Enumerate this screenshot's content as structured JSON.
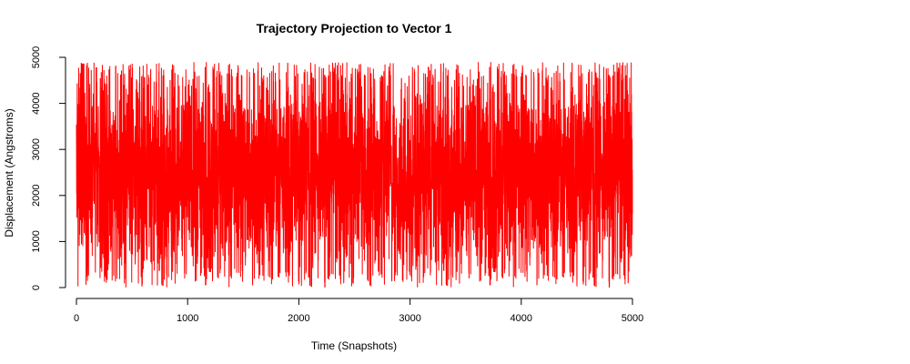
{
  "chart_data": {
    "type": "line",
    "title": "Trajectory Projection to Vector 1",
    "xlabel": "Time (Snapshots)",
    "ylabel": "Displacement (Angstroms)",
    "xlim": [
      0,
      5000
    ],
    "ylim": [
      0,
      5000
    ],
    "xticks": [
      0,
      1000,
      2000,
      3000,
      4000,
      5000
    ],
    "yticks": [
      0,
      1000,
      2000,
      3000,
      4000,
      5000
    ],
    "grid": false,
    "legend": "none",
    "series": [
      {
        "color": "#ff0000",
        "description": "dense noisy trace of ~5000 snapshots, fluctuating between roughly 0 and 4900",
        "n_points": 5000,
        "y_min": 0,
        "y_max": 4900
      }
    ]
  }
}
